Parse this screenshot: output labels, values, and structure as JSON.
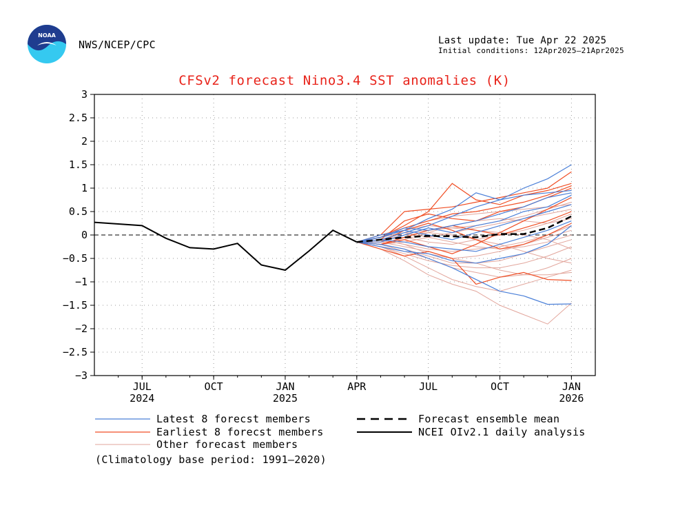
{
  "header": {
    "source": "NWS/NCEP/CPC",
    "last_update": "Last update: Tue Apr 22 2025",
    "initial_conditions": "Initial conditions: 12Apr2025–21Apr2025",
    "logo_text": "NOAA"
  },
  "footnote": "(Climatology base period: 1991–2020)",
  "colors": {
    "latest": "#4a7fd8",
    "earliest": "#f04e24",
    "other": "#e2a59b",
    "analysis": "#000000",
    "title": "#e8231a",
    "logo_blue": "#1f3c8f",
    "logo_cyan": "#35c9f0"
  },
  "chart_data": {
    "type": "line",
    "title": "CFSv2 forecast Nino3.4 SST anomalies (K)",
    "ylim": [
      -3,
      3
    ],
    "xlim": [
      0,
      21
    ],
    "y_ticks": [
      3,
      2.5,
      2,
      1.5,
      1,
      0.5,
      0,
      -0.5,
      -1,
      -1.5,
      -2,
      -2.5,
      -3
    ],
    "y_tick_labels": [
      "3",
      "2.5",
      "2",
      "1.5",
      "1",
      "0.5",
      "0",
      "−0.5",
      "−1",
      "−1.5",
      "−2",
      "−2.5",
      "−3"
    ],
    "x_ticks": [
      {
        "x": 2,
        "label": "JUL",
        "year": "2024"
      },
      {
        "x": 5,
        "label": "OCT",
        "year": ""
      },
      {
        "x": 8,
        "label": "JAN",
        "year": "2025"
      },
      {
        "x": 11,
        "label": "APR",
        "year": ""
      },
      {
        "x": 14,
        "label": "JUL",
        "year": ""
      },
      {
        "x": 17,
        "label": "OCT",
        "year": ""
      },
      {
        "x": 20,
        "label": "JAN",
        "year": "2026"
      }
    ],
    "legend": [
      {
        "label": "Latest 8 forecst members",
        "style": "latest"
      },
      {
        "label": "Earliest 8 forecst members",
        "style": "earliest"
      },
      {
        "label": "Other forecast members",
        "style": "other"
      },
      {
        "label": "Forecast ensemble mean",
        "style": "mean"
      },
      {
        "label": "NCEI OIv2.1 daily analysis",
        "style": "analysis"
      }
    ],
    "analysis": {
      "name": "NCEI OIv2.1 daily analysis",
      "x": [
        0,
        2,
        3,
        4,
        5,
        6,
        7,
        8,
        9,
        10,
        11
      ],
      "y": [
        0.27,
        0.2,
        -0.07,
        -0.27,
        -0.3,
        -0.18,
        -0.64,
        -0.75,
        -0.34,
        0.1,
        -0.15
      ]
    },
    "ensemble_mean": {
      "name": "Forecast ensemble mean",
      "x": [
        11,
        12,
        13,
        14,
        15,
        16,
        17,
        18,
        19,
        20
      ],
      "y": [
        -0.15,
        -0.1,
        -0.05,
        -0.02,
        -0.03,
        -0.05,
        0.02,
        0.02,
        0.15,
        0.4
      ]
    },
    "forecast_x": [
      11,
      12,
      13,
      14,
      15,
      16,
      17,
      18,
      19,
      20
    ],
    "members": {
      "latest": [
        [
          -0.15,
          -0.05,
          0.1,
          0.35,
          0.55,
          0.9,
          0.75,
          1.0,
          1.2,
          1.5
        ],
        [
          -0.15,
          -0.1,
          0.05,
          0.2,
          0.4,
          0.6,
          0.75,
          0.85,
          0.9,
          0.95
        ],
        [
          -0.15,
          -0.2,
          -0.3,
          -0.5,
          -0.7,
          -0.95,
          -1.2,
          -1.3,
          -1.48,
          -1.47
        ],
        [
          -0.15,
          -0.05,
          0.15,
          0.1,
          0.2,
          0.3,
          0.45,
          0.6,
          0.8,
          0.9
        ],
        [
          -0.15,
          -0.25,
          -0.35,
          -0.4,
          -0.55,
          -0.6,
          -0.5,
          -0.4,
          -0.2,
          0.2
        ],
        [
          -0.15,
          -0.1,
          -0.15,
          -0.25,
          -0.3,
          -0.35,
          -0.2,
          -0.05,
          0.1,
          0.3
        ],
        [
          -0.15,
          0.0,
          0.1,
          0.0,
          -0.1,
          0.05,
          0.2,
          0.35,
          0.5,
          0.65
        ],
        [
          -0.15,
          -0.15,
          0.0,
          0.15,
          0.05,
          0.2,
          0.3,
          0.5,
          0.6,
          0.85
        ]
      ],
      "earliest": [
        [
          -0.15,
          0.0,
          0.5,
          0.55,
          0.6,
          0.7,
          0.8,
          0.9,
          1.0,
          1.35
        ],
        [
          -0.15,
          -0.05,
          0.2,
          0.5,
          1.1,
          0.75,
          0.65,
          0.85,
          0.95,
          1.1
        ],
        [
          -0.15,
          -0.3,
          -0.45,
          -0.35,
          -0.5,
          -1.05,
          -0.9,
          -0.8,
          -0.95,
          -0.97
        ],
        [
          -0.15,
          -0.1,
          0.3,
          0.45,
          0.35,
          0.3,
          0.5,
          0.6,
          0.8,
          1.0
        ],
        [
          -0.15,
          -0.2,
          -0.05,
          0.1,
          0.2,
          0.1,
          0.0,
          0.15,
          0.3,
          0.5
        ],
        [
          -0.15,
          -0.15,
          0.1,
          0.25,
          0.1,
          -0.1,
          -0.3,
          -0.2,
          0.0,
          0.25
        ],
        [
          -0.15,
          -0.05,
          0.15,
          0.3,
          0.45,
          0.5,
          0.6,
          0.7,
          0.85,
          1.05
        ],
        [
          -0.15,
          -0.2,
          -0.1,
          -0.25,
          -0.4,
          -0.2,
          0.05,
          0.3,
          0.55,
          0.8
        ]
      ],
      "other": [
        [
          -0.15,
          -0.3,
          -0.55,
          -0.85,
          -1.05,
          -1.2,
          -1.5,
          -1.7,
          -1.9,
          -1.45
        ],
        [
          -0.15,
          -0.25,
          -0.45,
          -0.7,
          -0.95,
          -1.1,
          -1.2,
          -1.05,
          -0.9,
          -0.75
        ],
        [
          -0.15,
          -0.2,
          -0.35,
          -0.5,
          -0.7,
          -0.8,
          -0.9,
          -0.85,
          -0.7,
          -0.5
        ],
        [
          -0.15,
          -0.2,
          -0.3,
          -0.45,
          -0.6,
          -0.6,
          -0.55,
          -0.4,
          -0.25,
          -0.1
        ],
        [
          -0.15,
          -0.1,
          -0.2,
          -0.3,
          -0.35,
          -0.3,
          -0.25,
          -0.15,
          0.0,
          0.2
        ],
        [
          -0.15,
          -0.1,
          -0.05,
          -0.15,
          -0.2,
          -0.1,
          0.0,
          0.1,
          0.25,
          0.45
        ],
        [
          -0.15,
          -0.05,
          0.05,
          0.1,
          0.15,
          0.2,
          0.3,
          0.4,
          0.55,
          0.7
        ],
        [
          -0.15,
          0.0,
          0.15,
          0.3,
          0.4,
          0.45,
          0.5,
          0.55,
          0.6,
          0.65
        ],
        [
          -0.15,
          -0.1,
          0.0,
          0.05,
          0.0,
          -0.1,
          -0.2,
          -0.35,
          -0.5,
          -0.6
        ],
        [
          -0.15,
          -0.15,
          -0.25,
          -0.35,
          -0.5,
          -0.6,
          -0.75,
          -0.85,
          -0.85,
          -0.8
        ],
        [
          -0.15,
          -0.05,
          0.1,
          0.2,
          0.15,
          0.1,
          0.05,
          0.0,
          -0.1,
          -0.3
        ],
        [
          -0.15,
          -0.2,
          -0.15,
          -0.05,
          0.05,
          0.15,
          0.25,
          0.35,
          0.45,
          0.55
        ],
        [
          -0.15,
          -0.1,
          -0.2,
          -0.4,
          -0.5,
          -0.45,
          -0.35,
          -0.2,
          -0.05,
          0.1
        ],
        [
          -0.15,
          -0.15,
          -0.1,
          0.05,
          0.2,
          0.3,
          0.35,
          0.3,
          0.25,
          0.35
        ],
        [
          -0.15,
          -0.25,
          -0.4,
          -0.55,
          -0.65,
          -0.7,
          -0.7,
          -0.6,
          -0.45,
          -0.25
        ],
        [
          -0.15,
          -0.05,
          0.05,
          -0.05,
          -0.15,
          -0.25,
          -0.3,
          -0.25,
          -0.15,
          0.0
        ]
      ]
    }
  }
}
